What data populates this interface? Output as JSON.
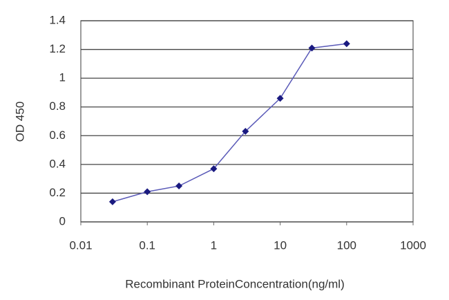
{
  "chart_data": {
    "type": "line",
    "x_label": "Recombinant ProteinConcentration(ng/ml)",
    "y_label": "OD 450",
    "x": [
      0.03,
      0.1,
      0.3,
      1,
      3,
      10,
      30,
      100
    ],
    "series": [
      {
        "color": "#1a1a80",
        "values": [
          0.14,
          0.21,
          0.25,
          0.37,
          0.63,
          0.86,
          1.21,
          1.24
        ]
      }
    ],
    "x_log": true,
    "xlim": [
      0.01,
      1000
    ],
    "xticks": [
      0.01,
      0.1,
      1,
      10,
      100,
      1000
    ],
    "ylim": [
      0,
      1.4
    ],
    "yticks": [
      0,
      0.2,
      0.4,
      0.6,
      0.8,
      1,
      1.2,
      1.4
    ],
    "grid": true
  }
}
